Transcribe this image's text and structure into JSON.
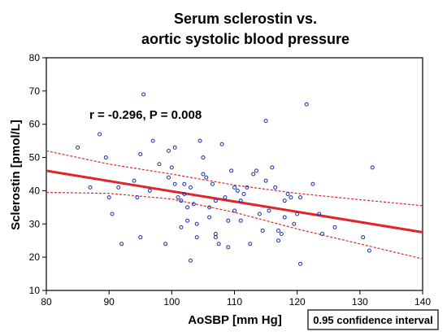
{
  "chart_data": {
    "type": "scatter",
    "title_line1": "Serum sclerostin vs.",
    "title_line2": "aortic systolic blood pressure",
    "xlabel": "AoSBP [mm Hg]",
    "ylabel": "Sclerostin [pmol/L]",
    "xlim": [
      80,
      140
    ],
    "ylim": [
      10,
      80
    ],
    "xticks": [
      80,
      90,
      100,
      110,
      120,
      130,
      140
    ],
    "yticks": [
      10,
      20,
      30,
      40,
      50,
      60,
      70,
      80
    ],
    "grid": false,
    "annotation": "r = -0.296, P = 0.008",
    "legend_text": "0.95 confidence interval",
    "legend_position": "bottom-right",
    "regression_line": {
      "x": [
        80,
        140
      ],
      "y": [
        46,
        27.5
      ]
    },
    "ci_upper": {
      "x": [
        80,
        90,
        100,
        110,
        120,
        130,
        140
      ],
      "y": [
        52,
        48,
        45,
        41.7,
        39.2,
        37.3,
        35.5
      ]
    },
    "ci_lower": {
      "x": [
        80,
        90,
        100,
        110,
        120,
        130,
        140
      ],
      "y": [
        39.5,
        39.2,
        37.5,
        33.5,
        28.5,
        24,
        19.5
      ]
    },
    "points": [
      [
        85,
        53
      ],
      [
        87,
        41
      ],
      [
        88.5,
        57
      ],
      [
        89.5,
        50
      ],
      [
        90,
        38
      ],
      [
        90.5,
        33
      ],
      [
        91.5,
        41
      ],
      [
        92,
        24
      ],
      [
        94,
        43
      ],
      [
        94.5,
        38
      ],
      [
        95,
        51
      ],
      [
        95,
        26
      ],
      [
        95.5,
        69
      ],
      [
        96.5,
        40
      ],
      [
        97,
        55
      ],
      [
        98,
        48
      ],
      [
        99,
        24
      ],
      [
        99.5,
        52
      ],
      [
        99.5,
        44
      ],
      [
        100,
        47
      ],
      [
        100.5,
        53
      ],
      [
        100.5,
        42
      ],
      [
        101,
        38
      ],
      [
        101.5,
        37
      ],
      [
        101.5,
        29
      ],
      [
        102,
        42
      ],
      [
        102,
        39
      ],
      [
        102.5,
        35
      ],
      [
        102.5,
        31
      ],
      [
        103,
        19
      ],
      [
        103,
        41
      ],
      [
        103.5,
        36
      ],
      [
        104,
        30
      ],
      [
        104,
        26
      ],
      [
        104.5,
        55
      ],
      [
        105,
        50
      ],
      [
        105,
        45
      ],
      [
        105.5,
        44
      ],
      [
        106,
        35
      ],
      [
        106,
        32
      ],
      [
        106.5,
        42
      ],
      [
        107,
        37
      ],
      [
        107,
        27
      ],
      [
        107,
        26
      ],
      [
        107.5,
        24
      ],
      [
        108,
        54
      ],
      [
        108.5,
        38
      ],
      [
        109,
        31
      ],
      [
        109,
        23
      ],
      [
        109.5,
        46
      ],
      [
        110,
        41
      ],
      [
        110,
        34
      ],
      [
        110.5,
        40
      ],
      [
        111,
        37
      ],
      [
        111,
        31
      ],
      [
        111.5,
        39
      ],
      [
        112,
        41
      ],
      [
        112.5,
        24
      ],
      [
        113,
        45
      ],
      [
        113.5,
        46
      ],
      [
        114,
        33
      ],
      [
        114.5,
        28
      ],
      [
        115,
        61
      ],
      [
        115,
        43
      ],
      [
        115.5,
        34
      ],
      [
        116,
        47
      ],
      [
        116.5,
        41
      ],
      [
        117,
        25
      ],
      [
        117,
        28
      ],
      [
        117.5,
        27
      ],
      [
        118,
        37
      ],
      [
        118,
        32
      ],
      [
        118.5,
        39
      ],
      [
        119,
        38
      ],
      [
        119.5,
        30
      ],
      [
        120,
        33
      ],
      [
        120.5,
        38
      ],
      [
        120.5,
        18
      ],
      [
        121.5,
        66
      ],
      [
        122.5,
        42
      ],
      [
        123.5,
        33
      ],
      [
        124,
        27
      ],
      [
        126,
        29
      ],
      [
        130.5,
        26
      ],
      [
        131.5,
        22
      ],
      [
        132,
        47
      ]
    ]
  }
}
